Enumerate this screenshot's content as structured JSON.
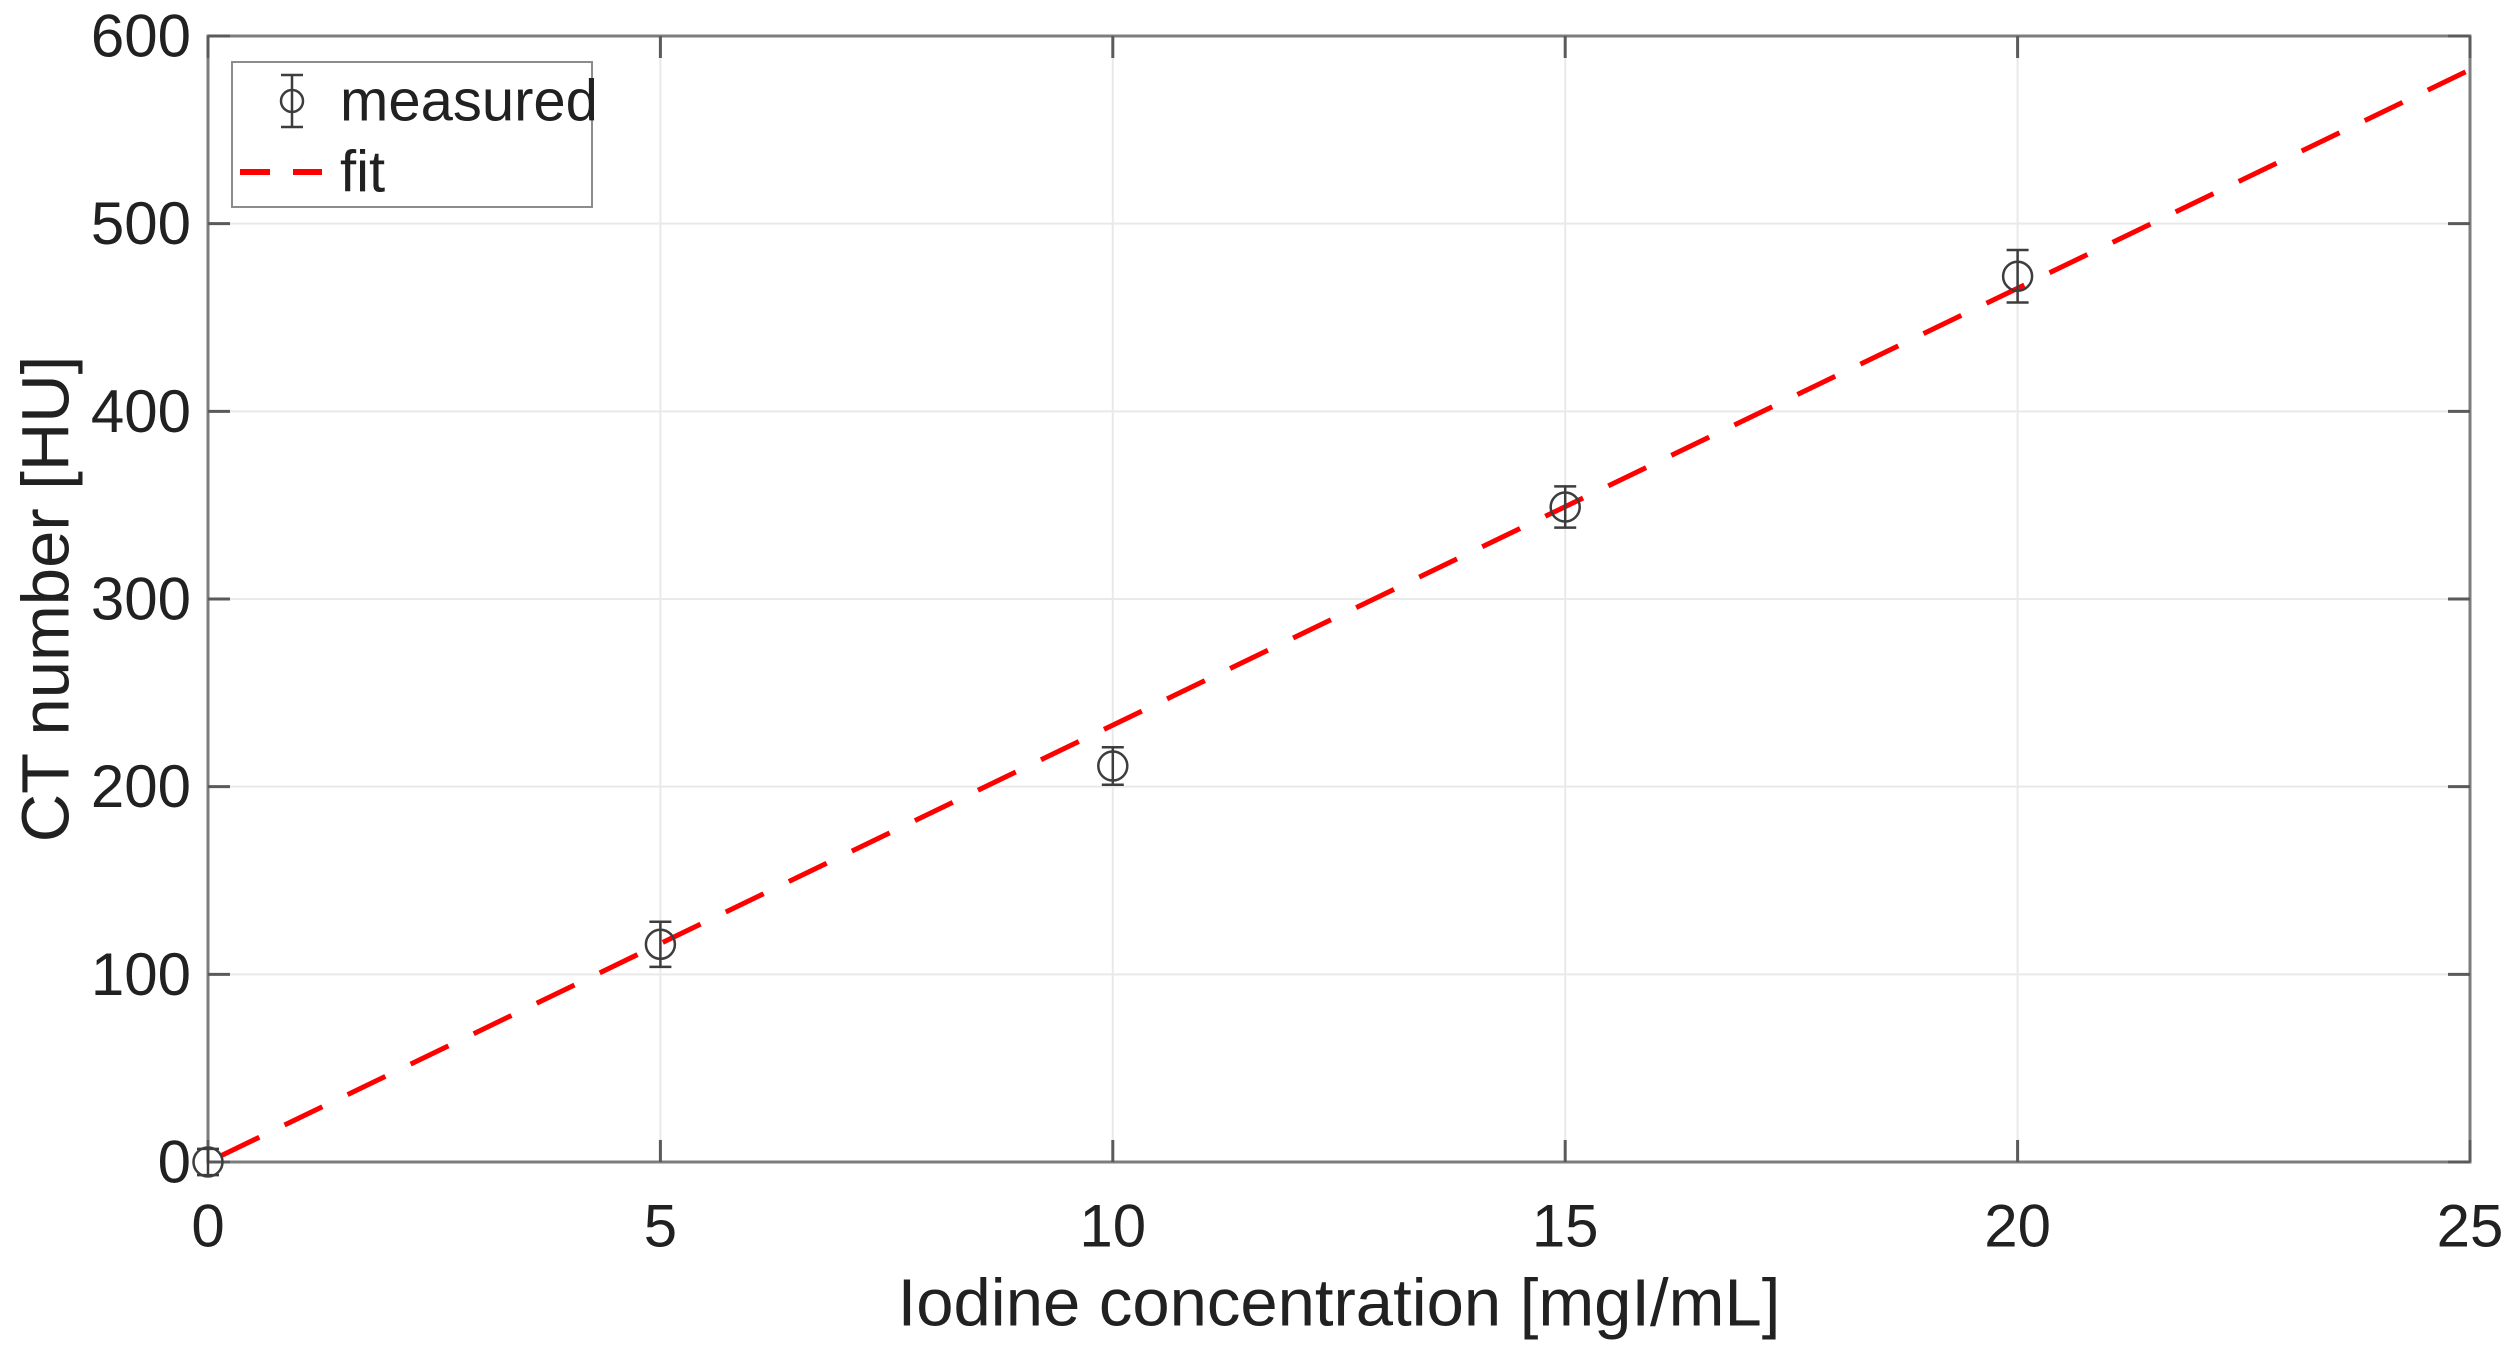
{
  "figure": {
    "background": "#ffffff",
    "plot_border_color": "#7d7d7d",
    "grid_color": "#e9e9e9",
    "tick_color": "#5a5a5a",
    "text_color": "#212121"
  },
  "chart_data": {
    "type": "scatter",
    "title": "",
    "xlabel": "Iodine concentration [mgI/mL]",
    "ylabel": "CT number [HU]",
    "xlim": [
      0,
      25
    ],
    "ylim": [
      0,
      600
    ],
    "xticks": [
      0,
      5,
      10,
      15,
      20,
      25
    ],
    "yticks": [
      0,
      100,
      200,
      300,
      400,
      500,
      600
    ],
    "grid": true,
    "legend": {
      "position": "top-left",
      "entries": [
        {
          "label": "measured",
          "marker": "open-circle-with-errorbar",
          "color": "#3d3d3d"
        },
        {
          "label": "fit",
          "line": "dashed",
          "color": "#ff0000"
        }
      ]
    },
    "series": [
      {
        "name": "measured",
        "type": "scatter_errorbar",
        "color": "#3d3d3d",
        "x": [
          0,
          5,
          10,
          15,
          20
        ],
        "y": [
          0,
          116,
          211,
          349,
          472
        ],
        "yerr": [
          7,
          12,
          10,
          11,
          14
        ]
      },
      {
        "name": "fit",
        "type": "dashed_line",
        "color": "#ff0000",
        "x": [
          0,
          25
        ],
        "y": [
          0,
          582
        ]
      }
    ]
  }
}
